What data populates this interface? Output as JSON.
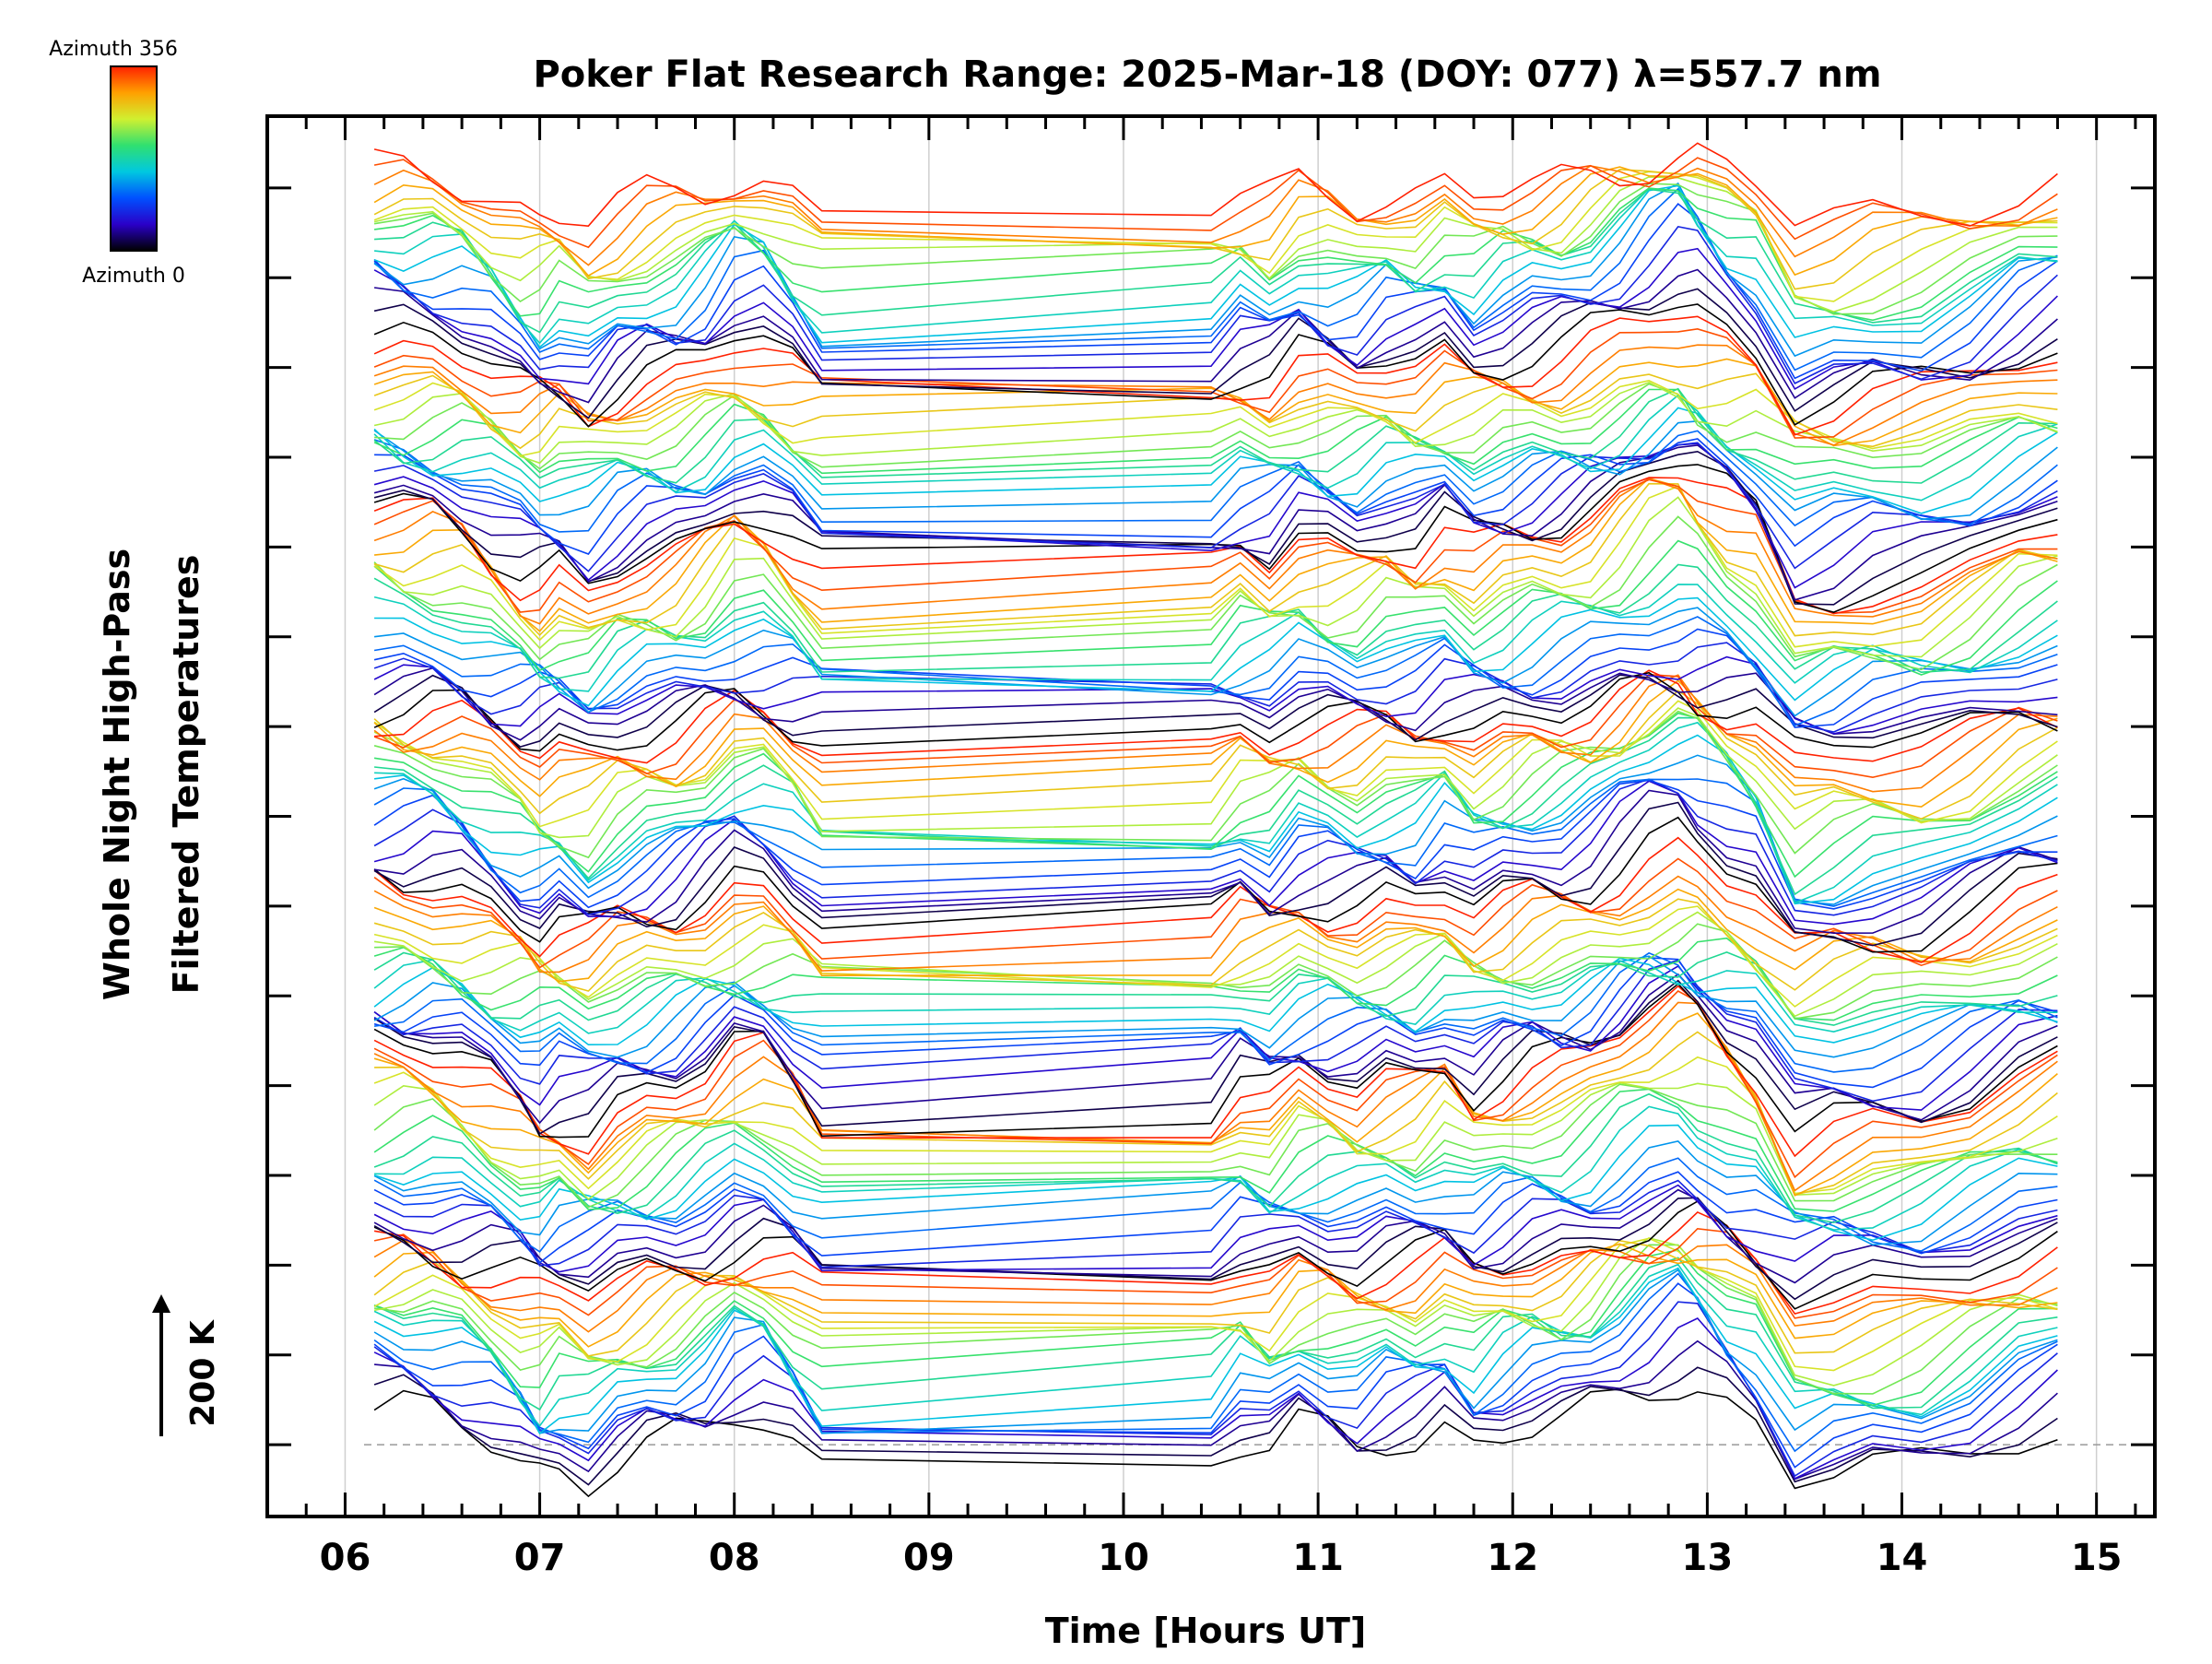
{
  "chart_data": {
    "type": "line",
    "title": "Poker Flat Research Range: 2025-Mar-18 (DOY: 077) λ=557.7 nm",
    "xlabel": "Time [Hours UT]",
    "ylabel_line1": "Whole Night High-Pass",
    "ylabel_line2": "Filtered Temperatures",
    "xlim": [
      5.6,
      15.3
    ],
    "x_tick_labels": [
      "06",
      "07",
      "08",
      "09",
      "10",
      "11",
      "12",
      "13",
      "14",
      "15"
    ],
    "x_ticks": [
      6,
      7,
      8,
      9,
      10,
      11,
      12,
      13,
      14,
      15
    ],
    "ylim": [
      -0.8,
      14.8
    ],
    "y_unit_spacing_K": 200,
    "scale_label": "200 K",
    "grid": "vertical",
    "colorbar": {
      "top_label": "Azimuth 356",
      "bottom_label": "Azimuth 0",
      "colormap": [
        "#000000",
        "#2a00c8",
        "#0050ff",
        "#00c8e0",
        "#30e070",
        "#d0f030",
        "#ffa000",
        "#ff2000"
      ]
    },
    "series_count": 140,
    "series_offset_step": 0.1,
    "time_points": [
      6.15,
      6.3,
      6.45,
      6.6,
      6.75,
      6.9,
      7.0,
      7.1,
      7.25,
      7.4,
      7.55,
      7.7,
      7.85,
      8.0,
      8.15,
      8.3,
      8.45,
      10.45,
      10.6,
      10.75,
      10.9,
      11.05,
      11.2,
      11.35,
      11.5,
      11.65,
      11.8,
      11.95,
      12.1,
      12.25,
      12.4,
      12.55,
      12.7,
      12.85,
      12.95,
      13.1,
      13.25,
      13.45,
      13.65,
      13.85,
      14.1,
      14.35,
      14.6,
      14.8
    ],
    "pattern_values": [
      0.55,
      0.5,
      0.45,
      0.3,
      0.05,
      -0.25,
      -0.4,
      -0.3,
      -0.5,
      -0.25,
      -0.1,
      0.0,
      0.2,
      0.5,
      0.45,
      0.1,
      -0.3,
      -0.2,
      0.05,
      -0.1,
      0.2,
      0.1,
      0.0,
      0.15,
      0.1,
      0.3,
      0.0,
      0.15,
      0.25,
      0.3,
      0.45,
      0.7,
      0.95,
      1.1,
      0.95,
      0.6,
      0.3,
      -0.6,
      -0.5,
      -0.4,
      -0.35,
      -0.1,
      0.25,
      0.4
    ],
    "baseline_level": 0.0
  }
}
